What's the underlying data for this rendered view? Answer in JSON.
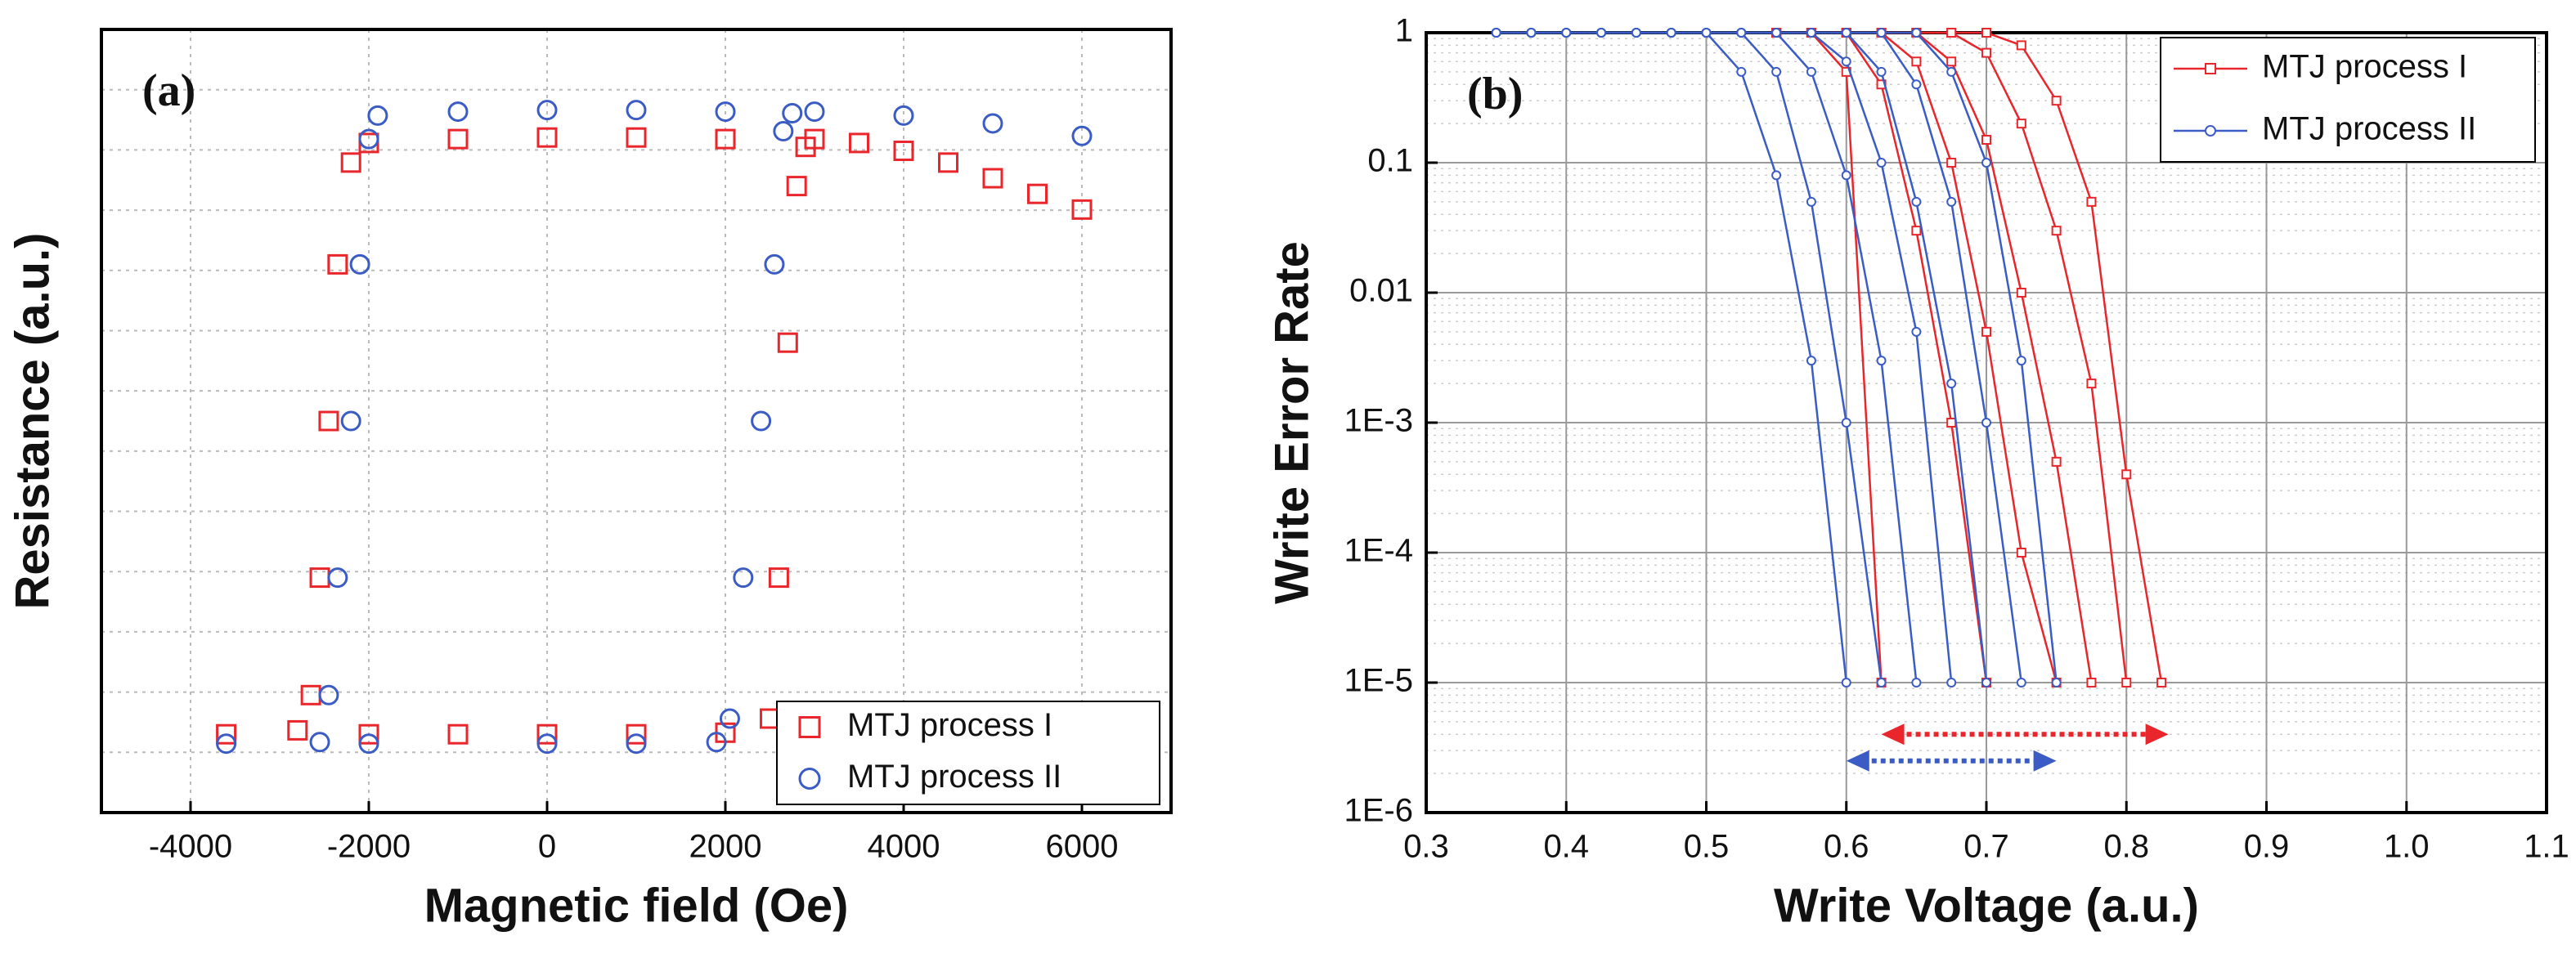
{
  "chart_data": [
    {
      "type": "scatter",
      "label": "(a)",
      "x_label": "Magnetic field (Oe)",
      "y_label": "Resistance (a.u.)",
      "xlim": [
        -5000,
        7000
      ],
      "ylim": [
        0,
        1
      ],
      "xticks": [
        -4000,
        -2000,
        0,
        2000,
        4000,
        6000
      ],
      "grid": true,
      "legend": "lower right",
      "series": [
        {
          "name": "MTJ process I",
          "color": "#e8262b",
          "marker": "square",
          "x": [
            6000,
            5500,
            5000,
            4500,
            4000,
            3500,
            3000,
            2000,
            1000,
            0,
            -1000,
            -2000,
            -2200,
            -2350,
            -2450,
            -2550,
            -2650,
            -2800,
            -3600,
            -2000,
            -1000,
            0,
            1000,
            2000,
            2500,
            2600,
            2700,
            2800,
            2900
          ],
          "values": [
            0.77,
            0.79,
            0.81,
            0.83,
            0.845,
            0.855,
            0.86,
            0.86,
            0.862,
            0.862,
            0.86,
            0.855,
            0.83,
            0.7,
            0.5,
            0.3,
            0.15,
            0.105,
            0.1,
            0.1,
            0.1,
            0.1,
            0.1,
            0.102,
            0.12,
            0.3,
            0.6,
            0.8,
            0.85
          ]
        },
        {
          "name": "MTJ process II",
          "color": "#3a5cc4",
          "marker": "circle",
          "x": [
            6000,
            5000,
            4000,
            3000,
            2000,
            1000,
            0,
            -1000,
            -1900,
            -2000,
            -2100,
            -2200,
            -2350,
            -2450,
            -2550,
            -3600,
            -2000,
            0,
            1000,
            1900,
            2050,
            2200,
            2400,
            2550,
            2650,
            2750
          ],
          "values": [
            0.864,
            0.88,
            0.89,
            0.895,
            0.895,
            0.897,
            0.897,
            0.895,
            0.89,
            0.86,
            0.7,
            0.5,
            0.3,
            0.15,
            0.09,
            0.088,
            0.088,
            0.088,
            0.088,
            0.09,
            0.12,
            0.3,
            0.5,
            0.7,
            0.87,
            0.893
          ]
        }
      ]
    },
    {
      "type": "line",
      "label": "(b)",
      "x_label": "Write Voltage (a.u.)",
      "y_label": "Write Error Rate",
      "log_y": true,
      "xlim": [
        0.3,
        1.1
      ],
      "ylim": [
        1e-06,
        1
      ],
      "xticks": [
        0.3,
        0.4,
        0.5,
        0.6,
        0.7,
        0.8,
        0.9,
        {
          "value": 1,
          "label": "1.0"
        },
        1.1
      ],
      "yticks": [
        {
          "value": 1e-06,
          "label": "1E-6"
        },
        {
          "value": 1e-05,
          "label": "1E-5"
        },
        {
          "value": 0.0001,
          "label": "1E-4"
        },
        {
          "value": 0.001,
          "label": "1E-3"
        },
        0.01,
        0.1,
        1
      ],
      "grid": true,
      "legend": "upper right",
      "x": [
        0.35,
        0.375,
        0.4,
        0.425,
        0.45,
        0.475,
        0.5,
        0.525,
        0.55,
        0.575,
        0.6,
        0.625,
        0.65,
        0.675,
        0.7,
        0.725,
        0.75,
        0.775,
        0.8,
        0.825
      ],
      "series": [
        {
          "name": "MTJ process I",
          "color": "#e8262b",
          "marker": "square",
          "curves": [
            [
              null,
              null,
              null,
              null,
              null,
              null,
              null,
              null,
              1,
              1,
              0.5,
              1e-05,
              null,
              null,
              null,
              null,
              null,
              null,
              null,
              null
            ],
            [
              null,
              null,
              null,
              null,
              null,
              null,
              null,
              null,
              1,
              1,
              1,
              0.4,
              0.03,
              0.001,
              1e-05,
              null,
              null,
              null,
              null,
              null
            ],
            [
              null,
              null,
              null,
              null,
              null,
              null,
              null,
              null,
              1,
              1,
              1,
              1,
              0.6,
              0.1,
              0.005,
              0.0001,
              1e-05,
              null,
              null,
              null
            ],
            [
              null,
              null,
              null,
              null,
              null,
              null,
              null,
              null,
              1,
              1,
              1,
              1,
              1,
              0.6,
              0.15,
              0.01,
              0.0005,
              1e-05,
              null,
              null
            ],
            [
              null,
              null,
              null,
              null,
              null,
              null,
              null,
              null,
              1,
              1,
              1,
              1,
              1,
              1,
              0.7,
              0.2,
              0.03,
              0.002,
              1e-05,
              null
            ],
            [
              null,
              null,
              null,
              null,
              null,
              null,
              null,
              null,
              1,
              1,
              1,
              1,
              1,
              1,
              1,
              0.8,
              0.3,
              0.05,
              0.0004,
              1e-05
            ]
          ]
        },
        {
          "name": "MTJ process II",
          "color": "#3a5cc4",
          "marker": "circle",
          "curves": [
            [
              1,
              1,
              1,
              1,
              1,
              1,
              1,
              0.5,
              0.08,
              0.003,
              1e-05,
              null,
              null,
              null,
              null,
              null,
              null,
              null,
              null,
              null
            ],
            [
              1,
              1,
              1,
              1,
              1,
              1,
              1,
              1,
              0.5,
              0.05,
              0.001,
              1e-05,
              null,
              null,
              null,
              null,
              null,
              null,
              null,
              null
            ],
            [
              1,
              1,
              1,
              1,
              1,
              1,
              1,
              1,
              1,
              0.5,
              0.08,
              0.003,
              1e-05,
              null,
              null,
              null,
              null,
              null,
              null,
              null
            ],
            [
              1,
              1,
              1,
              1,
              1,
              1,
              1,
              1,
              1,
              1,
              0.6,
              0.1,
              0.005,
              1e-05,
              null,
              null,
              null,
              null,
              null,
              null
            ],
            [
              1,
              1,
              1,
              1,
              1,
              1,
              1,
              1,
              1,
              1,
              1,
              0.5,
              0.05,
              0.002,
              1e-05,
              null,
              null,
              null,
              null,
              null
            ],
            [
              1,
              1,
              1,
              1,
              1,
              1,
              1,
              1,
              1,
              1,
              1,
              1,
              0.4,
              0.05,
              0.001,
              1e-05,
              null,
              null,
              null,
              null
            ],
            [
              1,
              1,
              1,
              1,
              1,
              1,
              1,
              1,
              1,
              1,
              1,
              1,
              1,
              0.5,
              0.1,
              0.003,
              1e-05,
              null,
              null,
              null
            ]
          ]
        }
      ],
      "arrows": [
        {
          "color": "#e8262b",
          "x": [
            0.625,
            0.83
          ],
          "y": 4e-06
        },
        {
          "color": "#3a5cc4",
          "x": [
            0.6,
            0.75
          ],
          "y": 2.5e-06
        }
      ]
    }
  ]
}
